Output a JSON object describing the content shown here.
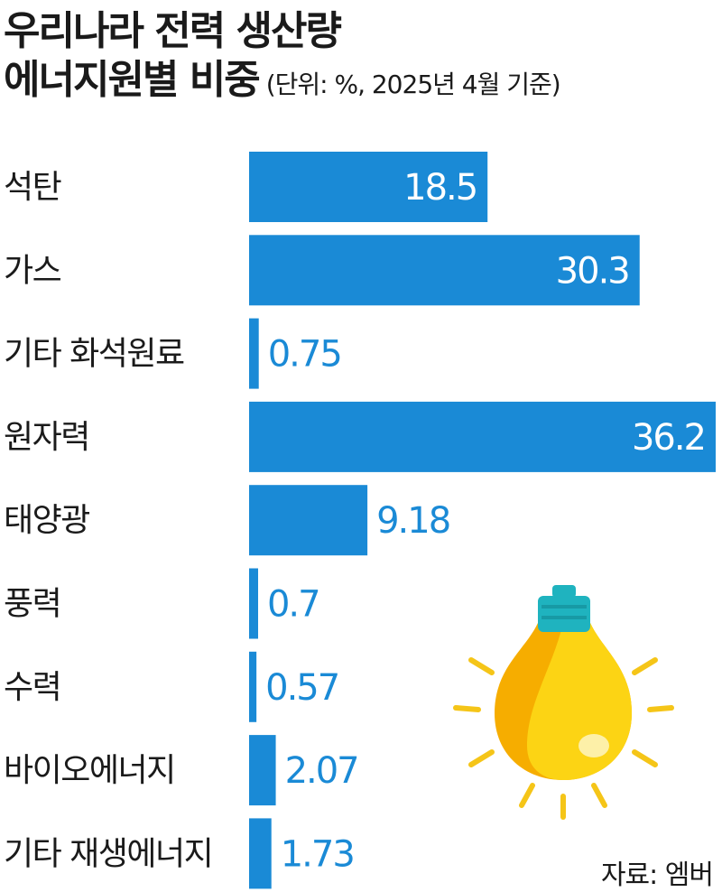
{
  "title_line1": "우리나라 전력 생산량",
  "title_line2": "에너지원별 비중",
  "unit_note": "(단위: %, 2025년 4월 기준)",
  "source": "자료: 엠버",
  "bar_color": "#1a8ad6",
  "bulb_icon": "light-bulb-icon",
  "chart_data": {
    "type": "bar",
    "orientation": "horizontal",
    "title": "우리나라 전력 생산량 에너지원별 비중",
    "unit": "%",
    "categories": [
      "석탄",
      "가스",
      "기타 화석원료",
      "원자력",
      "태양광",
      "풍력",
      "수력",
      "바이오에너지",
      "기타 재생에너지"
    ],
    "values": [
      18.5,
      30.3,
      0.75,
      36.2,
      9.18,
      0.7,
      0.57,
      2.07,
      1.73
    ],
    "value_labels": [
      "18.5",
      "30.3",
      "0.75",
      "36.2",
      "9.18",
      "0.7",
      "0.57",
      "2.07",
      "1.73"
    ],
    "xlim": [
      0,
      36.2
    ],
    "grid": false,
    "legend": "none"
  }
}
